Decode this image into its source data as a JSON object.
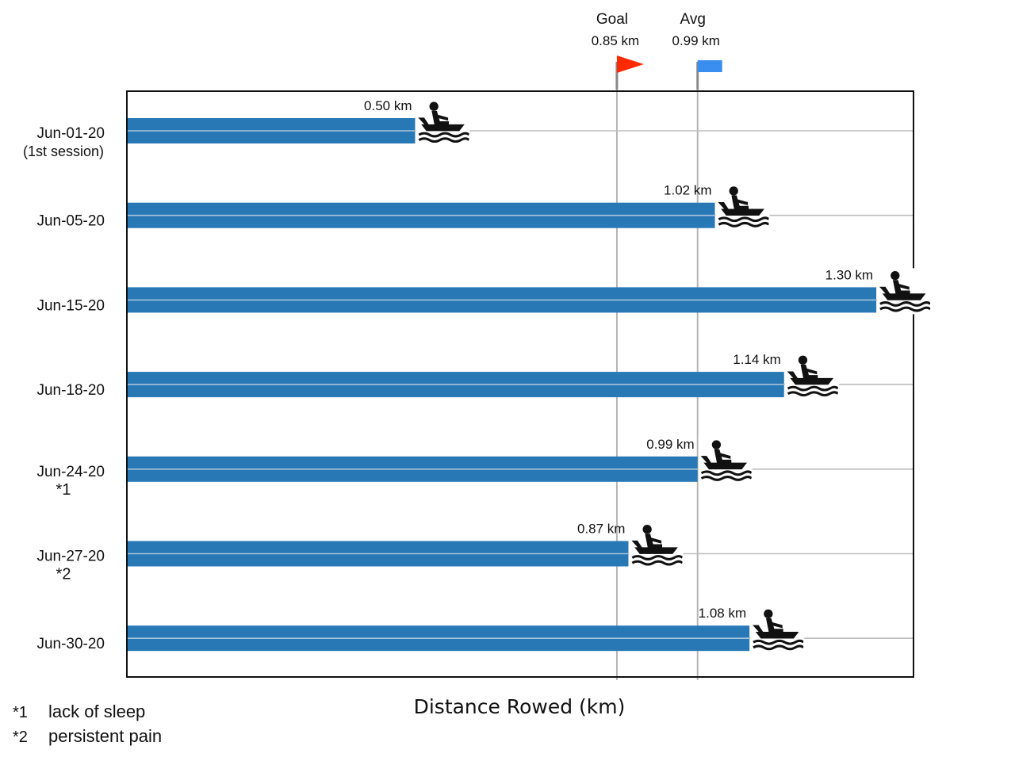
{
  "chart_data": {
    "type": "bar",
    "orientation": "horizontal",
    "xlabel": "Distance Rowed (km)",
    "unit": "km",
    "xlim": [
      0,
      1.35
    ],
    "grid": false,
    "categories": [
      "Jun-01-20",
      "Jun-05-20",
      "Jun-15-20",
      "Jun-18-20",
      "Jun-24-20",
      "Jun-27-20",
      "Jun-30-20"
    ],
    "category_notes": [
      "(1st session)",
      "",
      "",
      "",
      "*1",
      "*2",
      ""
    ],
    "values": [
      0.5,
      1.02,
      1.3,
      1.14,
      0.99,
      0.87,
      1.08
    ],
    "value_labels": [
      "0.50 km",
      "1.02 km",
      "1.30 km",
      "1.14 km",
      "0.99 km",
      "0.87 km",
      "1.08 km"
    ],
    "bar_color": "#2878b5",
    "marker_icon": "rowing-boat-icon",
    "reference_lines": [
      {
        "name": "Goal",
        "value": 0.85,
        "label": "0.85 km",
        "flag_color": "#ff2a00",
        "flag_shape": "pennant"
      },
      {
        "name": "Avg",
        "value": 0.99,
        "label": "0.99 km",
        "flag_color": "#3a8ef0",
        "flag_shape": "rectangle"
      }
    ],
    "footnotes": [
      {
        "mark": "*1",
        "text": "lack of sleep"
      },
      {
        "mark": "*2",
        "text": "persistent pain"
      }
    ]
  }
}
